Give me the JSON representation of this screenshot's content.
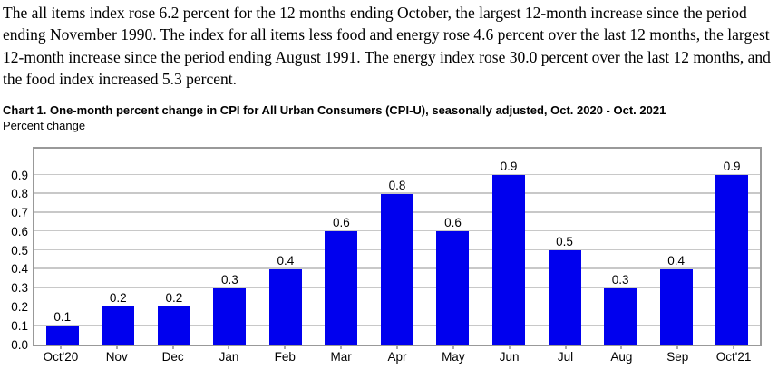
{
  "intro_paragraph": "The all items index rose 6.2 percent for the 12 months ending October, the largest 12-month increase since the period ending November 1990. The index for all items less food and energy rose 4.6 percent over the last 12 months, the largest 12-month increase since the period ending August 1991. The energy index rose 30.0 percent over the last 12 months, and the food index increased 5.3 percent.",
  "chart_data": {
    "type": "bar",
    "title": "Chart 1. One-month percent change in CPI for All Urban Consumers (CPI-U), seasonally adjusted, Oct. 2020 - Oct. 2021",
    "ylabel": "Percent change",
    "xlabel": "",
    "categories": [
      "Oct'20",
      "Nov",
      "Dec",
      "Jan",
      "Feb",
      "Mar",
      "Apr",
      "May",
      "Jun",
      "Jul",
      "Aug",
      "Sep",
      "Oct'21"
    ],
    "values": [
      0.1,
      0.2,
      0.2,
      0.3,
      0.4,
      0.6,
      0.8,
      0.6,
      0.9,
      0.5,
      0.3,
      0.4,
      0.9
    ],
    "data_labels": [
      "0.1",
      "0.2",
      "0.2",
      "0.3",
      "0.4",
      "0.6",
      "0.8",
      "0.6",
      "0.9",
      "0.5",
      "0.3",
      "0.4",
      "0.9"
    ],
    "ytick_labels": [
      "0.0",
      "0.1",
      "0.2",
      "0.3",
      "0.4",
      "0.5",
      "0.6",
      "0.7",
      "0.8",
      "0.9"
    ],
    "ylim": [
      0,
      1.04
    ],
    "grid": true,
    "legend_position": "none",
    "colors": {
      "bar": "#0000ee",
      "grid": "#c8c8c8",
      "frame": "#999999",
      "text": "#000000"
    }
  }
}
